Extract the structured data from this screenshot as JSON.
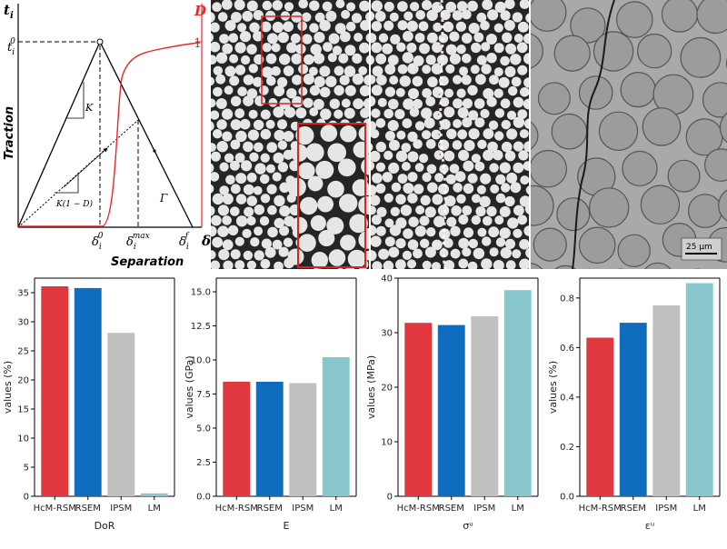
{
  "cohesive_law": {
    "y_axis_symbol": "t",
    "y_axis_sub": "i",
    "right_axis_label": "D",
    "peak_label": "t",
    "peak_sub": "i",
    "peak_sup": "0",
    "right_tick": "1",
    "ylabel": "Traction",
    "xlabel": "Separation",
    "x_axis_symbol": "δ",
    "stiffness_label": "K",
    "damaged_label": "K(1 − D)",
    "energy_label": "Γ",
    "x_ticks": [
      {
        "base": "δ",
        "sub": "i",
        "sup": "0"
      },
      {
        "base": "δ",
        "sub": "i",
        "sup": "max"
      },
      {
        "base": "δ",
        "sub": "i",
        "sup": "f"
      }
    ],
    "colors": {
      "traction": "#000000",
      "damage": "#e8262a"
    }
  },
  "micrographs": {
    "scale_bar_label": "25 μm",
    "colors": {
      "fiber": "#e6e6e6",
      "matrix": "#252525",
      "zoom_box": "#e0201e",
      "sem_bg": "#a9a9a9"
    }
  },
  "chart_data": [
    {
      "type": "bar",
      "categories": [
        "HcM-RSM",
        "RSEM",
        "IPSM",
        "LM"
      ],
      "values": [
        36.1,
        35.8,
        28.1,
        0.5
      ],
      "xlabel": "DoR",
      "ylabel": "values (%)",
      "ylim": [
        0,
        37.5
      ],
      "yticks": [
        0,
        5,
        10,
        15,
        20,
        25,
        30,
        35
      ],
      "ytick_labels": [
        "0",
        "5",
        "10",
        "15",
        "20",
        "25",
        "30",
        "35"
      ],
      "colors": [
        "#e1373f",
        "#0f6cbf",
        "#c0c0c0",
        "#88c8cc"
      ]
    },
    {
      "type": "bar",
      "categories": [
        "HcM-RSM",
        "RSEM",
        "IPSM",
        "LM"
      ],
      "values": [
        8.4,
        8.4,
        8.3,
        10.2
      ],
      "xlabel": "E",
      "ylabel": "values (GPa)",
      "ylim": [
        0,
        16.0
      ],
      "yticks": [
        0,
        2.5,
        5.0,
        7.5,
        10.0,
        12.5,
        15.0
      ],
      "ytick_labels": [
        "0.0",
        "2.5",
        "5.0",
        "7.5",
        "10.0",
        "12.5",
        "15.0"
      ],
      "colors": [
        "#e1373f",
        "#0f6cbf",
        "#c0c0c0",
        "#88c8cc"
      ]
    },
    {
      "type": "bar",
      "categories": [
        "HcM-RSM",
        "RSEM",
        "IPSM",
        "LM"
      ],
      "values": [
        31.8,
        31.4,
        33.0,
        37.8
      ],
      "xlabel": "σᵘ",
      "ylabel": "values (MPa)",
      "ylim": [
        0,
        40
      ],
      "yticks": [
        0,
        10,
        20,
        30,
        40
      ],
      "ytick_labels": [
        "0",
        "10",
        "20",
        "30",
        "40"
      ],
      "colors": [
        "#e1373f",
        "#0f6cbf",
        "#c0c0c0",
        "#88c8cc"
      ]
    },
    {
      "type": "bar",
      "categories": [
        "HcM-RSM",
        "RSEM",
        "IPSM",
        "LM"
      ],
      "values": [
        0.64,
        0.7,
        0.77,
        0.86
      ],
      "xlabel": "εᵘ",
      "ylabel": "values (%)",
      "ylim": [
        0,
        0.88
      ],
      "yticks": [
        0,
        0.2,
        0.4,
        0.6,
        0.8
      ],
      "ytick_labels": [
        "0.0",
        "0.2",
        "0.4",
        "0.6",
        "0.8"
      ],
      "colors": [
        "#e1373f",
        "#0f6cbf",
        "#c0c0c0",
        "#88c8cc"
      ]
    }
  ]
}
